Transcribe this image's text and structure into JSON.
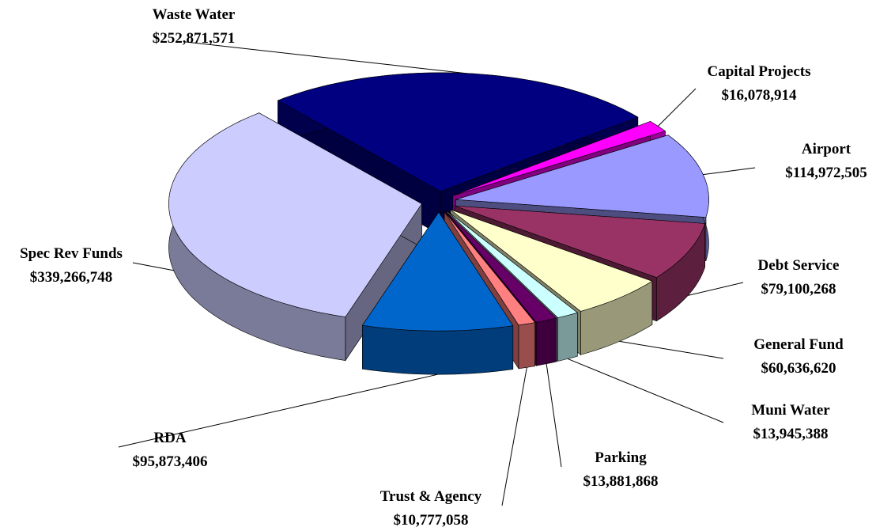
{
  "chart_data": {
    "type": "pie",
    "categories": [
      "Waste Water",
      "Capital Projects",
      "Airport",
      "Debt Service",
      "General Fund",
      "Muni Water",
      "Parking",
      "Trust & Agency",
      "RDA",
      "Spec Rev Funds"
    ],
    "values": [
      252871571,
      16078914,
      114972505,
      79100268,
      60636620,
      13945388,
      13881868,
      10777058,
      95873406,
      339266748
    ],
    "value_labels": [
      "$252,871,571",
      "$16,078,914",
      "$114,972,505",
      "$79,100,268",
      "$60,636,620",
      "$13,945,388",
      "$13,881,868",
      "$10,777,058",
      "$95,873,406",
      "$339,266,748"
    ],
    "colors": [
      "#000080",
      "#ff00ff",
      "#9999ff",
      "#993366",
      "#ffffcc",
      "#ccffff",
      "#660066",
      "#ff8080",
      "#0066cc",
      "#ccccff"
    ]
  }
}
